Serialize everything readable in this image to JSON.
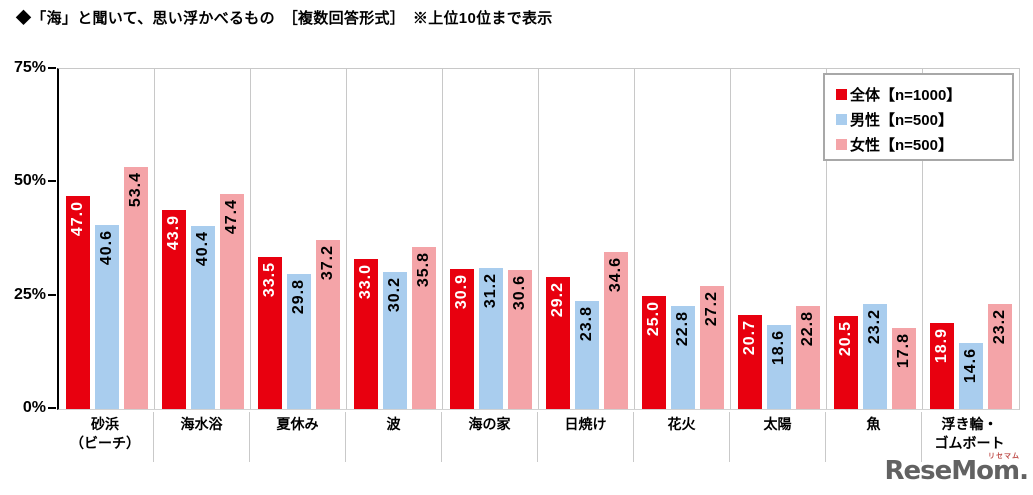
{
  "watermark": {
    "ruby": "リセマム",
    "text": "ReseMom."
  },
  "chart_data": {
    "type": "bar",
    "title": "◆「海」と聞いて、思い浮かべるもの　［複数回答形式］　※上位10位まで表示",
    "categories": [
      "砂浜\n（ビーチ）",
      "海水浴",
      "夏休み",
      "波",
      "海の家",
      "日焼け",
      "花火",
      "太陽",
      "魚",
      "浮き輪・\nゴムボート"
    ],
    "series": [
      {
        "name": "全体【n=1000】",
        "color": "#e8000f",
        "label_color": "#ffffff",
        "values": [
          47.0,
          43.9,
          33.5,
          33.0,
          30.9,
          29.2,
          25.0,
          20.7,
          20.5,
          18.9
        ]
      },
      {
        "name": "男性【n=500】",
        "color": "#a9cdee",
        "label_color": "#000000",
        "values": [
          40.6,
          40.4,
          29.8,
          30.2,
          31.2,
          23.8,
          22.8,
          18.6,
          23.2,
          14.6
        ]
      },
      {
        "name": "女性【n=500】",
        "color": "#f4a4a8",
        "label_color": "#000000",
        "values": [
          53.4,
          47.4,
          37.2,
          35.8,
          30.6,
          34.6,
          27.2,
          22.8,
          17.8,
          23.2
        ]
      }
    ],
    "ylim": [
      0,
      75
    ],
    "yticks": [
      {
        "value": 75,
        "label": "75%"
      },
      {
        "value": 50,
        "label": "50%"
      },
      {
        "value": 25,
        "label": "25%"
      },
      {
        "value": 0,
        "label": "0%"
      }
    ],
    "value_label_format": "one_decimal",
    "value_label_rotation": -90,
    "legend_position": "top-right",
    "grid": "vertical category separators only, no horizontal gridlines"
  }
}
